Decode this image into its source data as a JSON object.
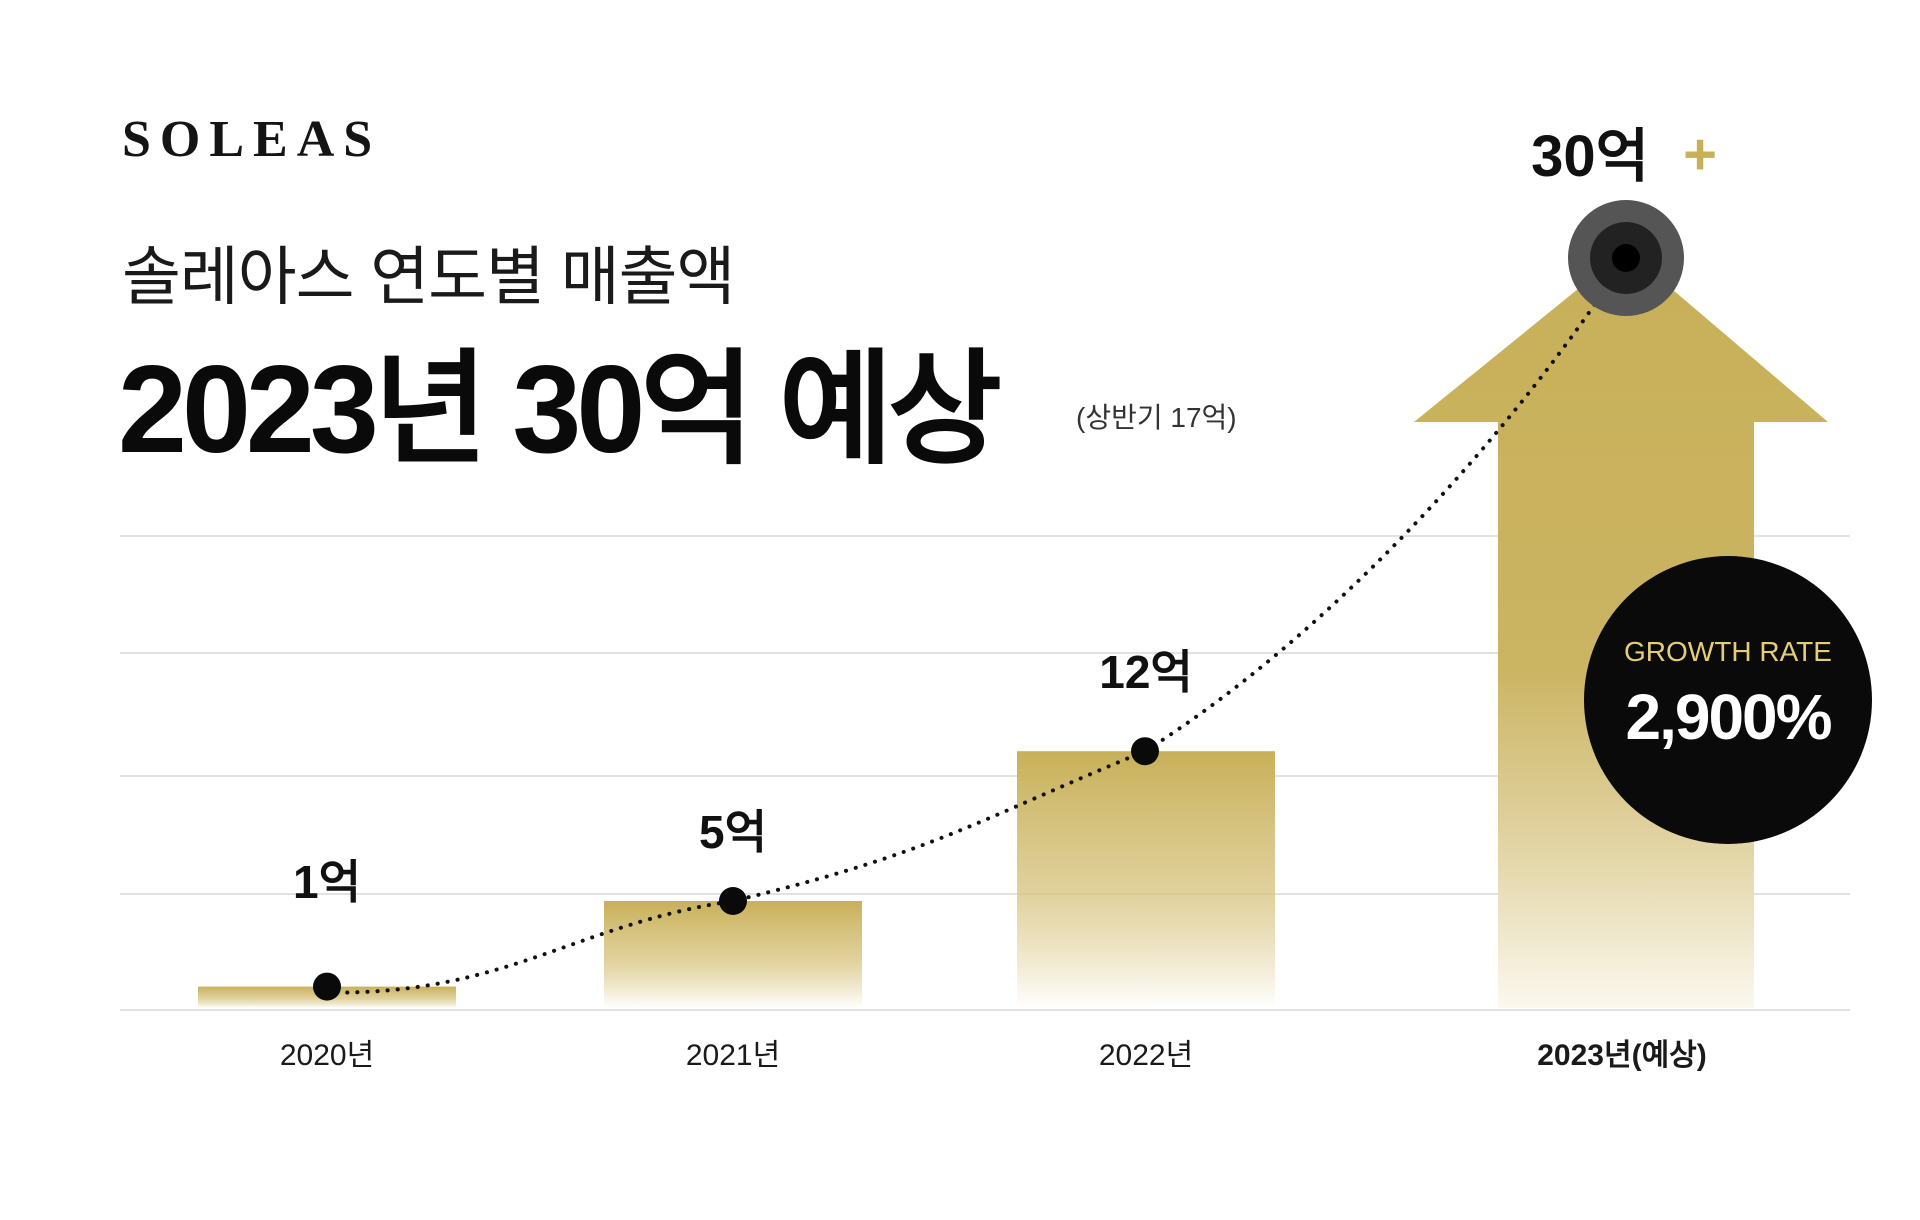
{
  "brand": "SOLEAS",
  "subtitle": "솔레아스 연도별 매출액",
  "headline": "2023년 30억 예상",
  "headline_note": "(상반기 17억)",
  "growth": {
    "label": "GROWTH RATE",
    "value": "2,900%"
  },
  "colors": {
    "accent_gold": "#c8b059",
    "gold_light": "#e6cd73",
    "dark": "#0a0a0a",
    "gridline": "#e2e2e2"
  },
  "chart_data": {
    "type": "bar",
    "categories": [
      "2020년",
      "2021년",
      "2022년",
      "2023년(예상)"
    ],
    "values": [
      1,
      5,
      12,
      30
    ],
    "data_labels": [
      "1억",
      "5억",
      "12억",
      "30억"
    ],
    "last_label_suffix": "+",
    "unit": "억",
    "ylim": [
      0,
      30
    ],
    "grid": true,
    "highlight_category": "2023년(예상)",
    "last_bar_style": "arrow",
    "trend_line": "dotted"
  }
}
